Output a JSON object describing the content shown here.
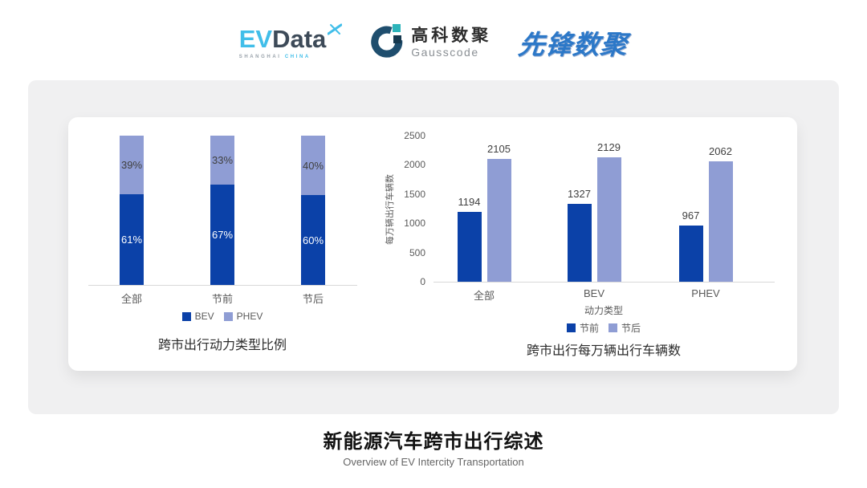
{
  "header": {
    "evdata": {
      "part1": "EV",
      "part2": "Data",
      "sub1": "SHANGHAI",
      "sub2": "CHINA"
    },
    "gausscode": {
      "name_cn": "高科数聚",
      "name_en": "Gausscode"
    },
    "xianfeng": {
      "name": "先锋数聚"
    }
  },
  "colors": {
    "bev_dark": "#0B41A8",
    "phev_light": "#8F9DD4",
    "axis_line": "#D9D9D9",
    "card_bg": "#F0F0F1",
    "evdata_blue": "#41BEE9",
    "evdata_dark": "#3D4A58",
    "gauss_ring": "#1F4E6E",
    "gauss_teal": "#2DB4BA",
    "gauss_square": "#16384E",
    "xianfeng_blue": "#2C78C8"
  },
  "chart_data": [
    {
      "type": "bar",
      "variant": "stacked_percent",
      "title": "跨市出行动力类型比例",
      "categories": [
        "全部",
        "节前",
        "节后"
      ],
      "series": [
        {
          "name": "BEV",
          "values": [
            61,
            67,
            60
          ],
          "labels": [
            "61%",
            "67%",
            "60%"
          ],
          "color": "#0B41A8",
          "label_color": "#FFFFFF"
        },
        {
          "name": "PHEV",
          "values": [
            39,
            33,
            40
          ],
          "labels": [
            "39%",
            "33%",
            "40%"
          ],
          "color": "#8F9DD4",
          "label_color": "#404040"
        }
      ],
      "legend_position": "bottom",
      "grid": false
    },
    {
      "type": "bar",
      "variant": "grouped",
      "title": "跨市出行每万辆出行车辆数",
      "categories": [
        "全部",
        "BEV",
        "PHEV"
      ],
      "xlabel": "动力类型",
      "ylabel": "每万辆出行车辆数",
      "ylim": [
        0,
        2500
      ],
      "yticks": [
        0,
        500,
        1000,
        1500,
        2000,
        2500
      ],
      "series": [
        {
          "name": "节前",
          "values": [
            1194,
            1327,
            967
          ],
          "color": "#0B41A8"
        },
        {
          "name": "节后",
          "values": [
            2105,
            2129,
            2062
          ],
          "color": "#8F9DD4"
        }
      ],
      "legend_position": "bottom",
      "grid": false
    }
  ],
  "footer": {
    "title": "新能源汽车跨市出行综述",
    "subtitle": "Overview of EV Intercity Transportation"
  }
}
